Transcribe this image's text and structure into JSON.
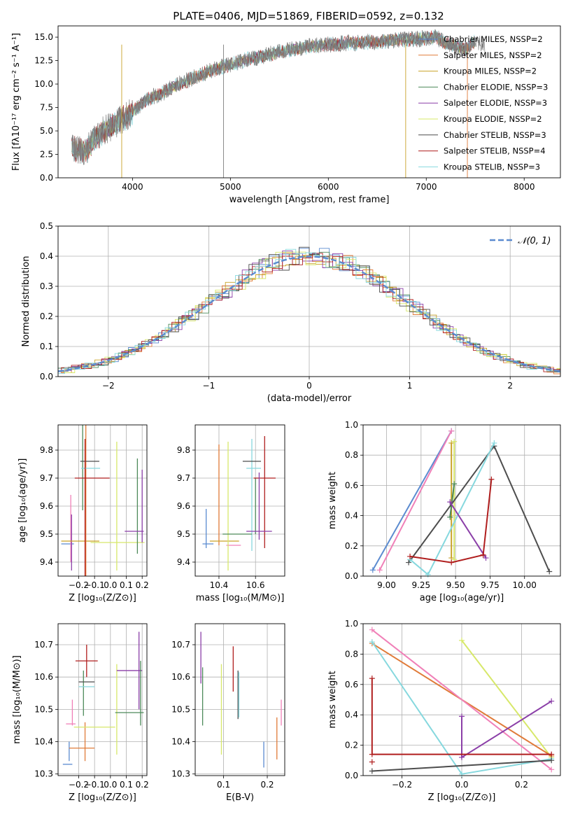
{
  "chart_data": [
    {
      "id": "spectrum",
      "type": "line",
      "title": "PLATE=0406, MJD=51869, FIBERID=0592, z=0.132",
      "xlabel": "wavelength [Angstrom, rest frame]",
      "ylabel": "Flux [fλ10⁻¹⁷ erg cm⁻² s⁻¹ A⁻¹]",
      "xlim": [
        3240,
        8370
      ],
      "ylim": [
        0,
        16.2
      ],
      "xticks": [
        "4000",
        "5000",
        "6000",
        "7000",
        "8000"
      ],
      "yticks": [
        "0.0",
        "2.5",
        "5.0",
        "7.5",
        "10.0",
        "12.5",
        "15.0"
      ],
      "grid": false,
      "legend_position": "top-right",
      "observed_flux": {
        "x": [
          3380,
          3450,
          3520,
          3600,
          3700,
          3800,
          3900,
          4000,
          4100,
          4200,
          4300,
          4400,
          4500,
          4600,
          4700,
          4800,
          4900,
          5000,
          5100,
          5200,
          5300,
          5400,
          5500,
          5600,
          5700,
          5800,
          5900,
          6000,
          6100,
          6200,
          6300,
          6400,
          6500,
          6600,
          6700,
          6800,
          6900,
          7000,
          7100,
          7200,
          7300,
          7400,
          7500,
          7600
        ],
        "y": [
          3.2,
          3.0,
          2.7,
          4.0,
          5.0,
          5.6,
          6.3,
          7.0,
          8.0,
          8.6,
          9.0,
          9.6,
          10.1,
          10.6,
          11.0,
          11.4,
          11.8,
          12.1,
          12.4,
          12.7,
          12.9,
          13.2,
          13.4,
          13.6,
          13.8,
          14.0,
          14.1,
          14.2,
          14.3,
          14.4,
          14.4,
          14.5,
          14.5,
          14.6,
          14.7,
          14.7,
          14.8,
          14.9,
          15.0,
          14.4,
          14.0,
          13.6,
          14.6,
          14.1
        ]
      },
      "series": [
        {
          "name": "Chabrier MILES, N_SSP=2",
          "color": "#5b8bd0"
        },
        {
          "name": "Salpeter MILES, N_SSP=2",
          "color": "#e07b39"
        },
        {
          "name": "Kroupa MILES, N_SSP=2",
          "color": "#c9a227"
        },
        {
          "name": "Chabrier ELODIE, N_SSP=3",
          "color": "#4d8a5a"
        },
        {
          "name": "Salpeter ELODIE, N_SSP=3",
          "color": "#8b3fa8"
        },
        {
          "name": "Kroupa ELODIE, N_SSP=2",
          "color": "#d7e86a"
        },
        {
          "name": "Chabrier STELIB, N_SSP=3",
          "color": "#4d4d4d"
        },
        {
          "name": "Salpeter STELIB, N_SSP=4",
          "color": "#b01e1e"
        },
        {
          "name": "Kroupa STELIB, N_SSP=3",
          "color": "#86d8de"
        }
      ]
    },
    {
      "id": "residuals",
      "type": "line",
      "xlabel": "(data-model)/error",
      "ylabel": "Normed distribution",
      "xlim": [
        -2.5,
        2.5
      ],
      "ylim": [
        0,
        0.5
      ],
      "xticks": [
        "−2",
        "−1",
        "0",
        "1",
        "2"
      ],
      "yticks": [
        "0.0",
        "0.1",
        "0.2",
        "0.3",
        "0.4",
        "0.5"
      ],
      "grid": true,
      "legend_position": "top-right",
      "gaussian_label": "𝒩(0, 1)",
      "gaussian_color": "#5b8bd0"
    },
    {
      "id": "age-vs-Z",
      "type": "scatter",
      "xlabel": "Z [log₁₀(Z/Z⊙)]",
      "ylabel": "age  [log₁₀(age/yr)]",
      "xlim": [
        -0.33,
        0.23
      ],
      "ylim": [
        9.35,
        9.89
      ],
      "xticks": [
        -0.2,
        -0.1,
        0.0,
        0.1,
        0.2
      ],
      "yticks": [
        9.4,
        9.5,
        9.6,
        9.7,
        9.8
      ],
      "grid": true,
      "points": [
        {
          "x": -0.27,
          "xerr": 0.04,
          "y": 9.465,
          "yerr": 0.0,
          "color": "#5b8bd0"
        },
        {
          "x": -0.25,
          "xerr": 0.0,
          "y": 9.52,
          "yerr": 0.12,
          "color": "#f080b8"
        },
        {
          "x": -0.245,
          "xerr": 0.0,
          "y": 9.47,
          "yerr": 0.1,
          "color": "#8b3fa8"
        },
        {
          "x": -0.19,
          "xerr": 0.12,
          "y": 9.475,
          "yerr": 0.0,
          "color": "#c9a227"
        },
        {
          "x": -0.155,
          "xerr": 0.0,
          "y": 9.65,
          "yerr": 0.35,
          "color": "#e07b39"
        },
        {
          "x": -0.175,
          "xerr": 0.0,
          "y": 9.745,
          "yerr": 0.16,
          "color": "#4d8a5a"
        },
        {
          "x": -0.13,
          "xerr": 0.06,
          "y": 9.76,
          "yerr": 0.0,
          "color": "#4d4d4d"
        },
        {
          "x": -0.125,
          "xerr": 0.06,
          "y": 9.735,
          "yerr": 0.0,
          "color": "#86d8de"
        },
        {
          "x": -0.115,
          "xerr": 0.11,
          "y": 9.7,
          "yerr": 0.0,
          "color": "#b01e1e"
        },
        {
          "x": -0.16,
          "xerr": 0.0,
          "y": 9.59,
          "yerr": 0.25,
          "color": "#b01e1e"
        },
        {
          "x": 0.045,
          "xerr": 0.17,
          "y": 9.47,
          "yerr": 0.0,
          "color": "#d7e86a"
        },
        {
          "x": 0.04,
          "xerr": 0.0,
          "y": 9.6,
          "yerr": 0.23,
          "color": "#d7e86a"
        },
        {
          "x": 0.2,
          "xerr": 0.0,
          "y": 9.6,
          "yerr": 0.13,
          "color": "#8b3fa8"
        },
        {
          "x": 0.17,
          "xerr": 0.0,
          "y": 9.6,
          "yerr": 0.17,
          "color": "#4d8a5a"
        },
        {
          "x": 0.15,
          "xerr": 0.06,
          "y": 9.51,
          "yerr": 0.0,
          "color": "#8b3fa8"
        }
      ]
    },
    {
      "id": "age-vs-mass",
      "type": "scatter",
      "xlabel": "mass [log₁₀(M/M⊙)]",
      "xlim": [
        10.27,
        10.76
      ],
      "ylim": [
        9.35,
        9.89
      ],
      "xticks": [
        10.4,
        10.6
      ],
      "yticks": [
        9.4,
        9.5,
        9.6,
        9.7,
        9.8
      ],
      "grid": true,
      "points": [
        {
          "x": 10.34,
          "xerr": 0.03,
          "y": 9.465,
          "yerr": 0.0,
          "color": "#5b8bd0"
        },
        {
          "x": 10.33,
          "xerr": 0.0,
          "y": 9.52,
          "yerr": 0.07,
          "color": "#5b8bd0"
        },
        {
          "x": 10.4,
          "xerr": 0.0,
          "y": 9.64,
          "yerr": 0.18,
          "color": "#e07b39"
        },
        {
          "x": 10.43,
          "xerr": 0.08,
          "y": 9.475,
          "yerr": 0.0,
          "color": "#c9a227"
        },
        {
          "x": 10.48,
          "xerr": 0.04,
          "y": 9.46,
          "yerr": 0.0,
          "color": "#f080b8"
        },
        {
          "x": 10.45,
          "xerr": 0.0,
          "y": 9.6,
          "yerr": 0.23,
          "color": "#d7e86a"
        },
        {
          "x": 10.58,
          "xerr": 0.0,
          "y": 9.64,
          "yerr": 0.2,
          "color": "#86d8de"
        },
        {
          "x": 10.58,
          "xerr": 0.05,
          "y": 9.76,
          "yerr": 0.0,
          "color": "#4d4d4d"
        },
        {
          "x": 10.59,
          "xerr": 0.04,
          "y": 9.735,
          "yerr": 0.0,
          "color": "#86d8de"
        },
        {
          "x": 10.6,
          "xerr": 0.0,
          "y": 9.6,
          "yerr": 0.1,
          "color": "#4d8a5a"
        },
        {
          "x": 10.65,
          "xerr": 0.06,
          "y": 9.7,
          "yerr": 0.0,
          "color": "#b01e1e"
        },
        {
          "x": 10.65,
          "xerr": 0.0,
          "y": 9.65,
          "yerr": 0.2,
          "color": "#b01e1e"
        },
        {
          "x": 10.5,
          "xerr": 0.08,
          "y": 9.5,
          "yerr": 0.0,
          "color": "#4d8a5a"
        },
        {
          "x": 10.62,
          "xerr": 0.07,
          "y": 9.51,
          "yerr": 0.0,
          "color": "#8b3fa8"
        },
        {
          "x": 10.62,
          "xerr": 0.0,
          "y": 9.6,
          "yerr": 0.12,
          "color": "#8b3fa8"
        }
      ]
    },
    {
      "id": "weight-vs-age",
      "type": "line",
      "xlabel": "age  [log₁₀(age/yr)]",
      "ylabel": "mass weight",
      "xlim": [
        8.83,
        10.26
      ],
      "ylim": [
        0.0,
        1.0
      ],
      "xticks": [
        9.0,
        9.25,
        9.5,
        9.75,
        10.0
      ],
      "yticks": [
        0.0,
        0.2,
        0.4,
        0.6,
        0.8,
        1.0
      ],
      "grid": true,
      "series": [
        {
          "color": "#5b8bd0",
          "x": [
            8.9,
            9.47
          ],
          "y": [
            0.04,
            0.96
          ]
        },
        {
          "color": "#f080b8",
          "x": [
            8.95,
            9.47
          ],
          "y": [
            0.04,
            0.96
          ]
        },
        {
          "color": "#c9a227",
          "x": [
            9.47,
            9.47
          ],
          "y": [
            0.12,
            0.88
          ]
        },
        {
          "color": "#d7e86a",
          "x": [
            9.49,
            9.49
          ],
          "y": [
            0.11,
            0.89
          ]
        },
        {
          "color": "#4d8a5a",
          "x": [
            9.46,
            9.49
          ],
          "y": [
            0.39,
            0.61
          ]
        },
        {
          "color": "#4d4d4d",
          "x": [
            9.16,
            9.78,
            10.18
          ],
          "y": [
            0.09,
            0.86,
            0.03
          ]
        },
        {
          "color": "#86d8de",
          "x": [
            9.17,
            9.3,
            9.78
          ],
          "y": [
            0.11,
            0.01,
            0.88
          ]
        },
        {
          "color": "#8b3fa8",
          "x": [
            9.46,
            9.72
          ],
          "y": [
            0.49,
            0.12
          ]
        },
        {
          "color": "#b01e1e",
          "x": [
            9.17,
            9.47,
            9.7,
            9.76
          ],
          "y": [
            0.13,
            0.09,
            0.14,
            0.64
          ]
        }
      ]
    },
    {
      "id": "mass-vs-Z",
      "type": "scatter",
      "xlabel": "Z [log₁₀(Z/Z⊙)]",
      "ylabel": "mass [log₁₀(M/M⊙)]",
      "xlim": [
        -0.33,
        0.23
      ],
      "ylim": [
        10.295,
        10.765
      ],
      "xticks": [
        -0.2,
        -0.1,
        0.0,
        0.1,
        0.2
      ],
      "yticks": [
        10.3,
        10.4,
        10.5,
        10.6,
        10.7
      ],
      "grid": true,
      "points": [
        {
          "x": -0.27,
          "xerr": 0.03,
          "y": 10.33,
          "yerr": 0.0,
          "color": "#5b8bd0"
        },
        {
          "x": -0.26,
          "xerr": 0.0,
          "y": 10.37,
          "yerr": 0.03,
          "color": "#5b8bd0"
        },
        {
          "x": -0.25,
          "xerr": 0.03,
          "y": 10.455,
          "yerr": 0.0,
          "color": "#f080b8"
        },
        {
          "x": -0.24,
          "xerr": 0.0,
          "y": 10.49,
          "yerr": 0.04,
          "color": "#f080b8"
        },
        {
          "x": -0.18,
          "xerr": 0.08,
          "y": 10.38,
          "yerr": 0.0,
          "color": "#e07b39"
        },
        {
          "x": -0.16,
          "xerr": 0.0,
          "y": 10.4,
          "yerr": 0.06,
          "color": "#e07b39"
        },
        {
          "x": -0.15,
          "xerr": 0.07,
          "y": 10.65,
          "yerr": 0.0,
          "color": "#b01e1e"
        },
        {
          "x": -0.15,
          "xerr": 0.0,
          "y": 10.65,
          "yerr": 0.05,
          "color": "#b01e1e"
        },
        {
          "x": -0.17,
          "xerr": 0.0,
          "y": 10.55,
          "yerr": 0.07,
          "color": "#4d8a5a"
        },
        {
          "x": -0.15,
          "xerr": 0.05,
          "y": 10.585,
          "yerr": 0.0,
          "color": "#4d4d4d"
        },
        {
          "x": -0.15,
          "xerr": 0.05,
          "y": 10.57,
          "yerr": 0.0,
          "color": "#86d8de"
        },
        {
          "x": -0.1,
          "xerr": 0.13,
          "y": 10.445,
          "yerr": 0.0,
          "color": "#d7e86a"
        },
        {
          "x": 0.04,
          "xerr": 0.0,
          "y": 10.5,
          "yerr": 0.14,
          "color": "#d7e86a"
        },
        {
          "x": 0.12,
          "xerr": 0.08,
          "y": 10.62,
          "yerr": 0.0,
          "color": "#8b3fa8"
        },
        {
          "x": 0.18,
          "xerr": 0.0,
          "y": 10.62,
          "yerr": 0.12,
          "color": "#8b3fa8"
        },
        {
          "x": 0.12,
          "xerr": 0.09,
          "y": 10.49,
          "yerr": 0.0,
          "color": "#4d8a5a"
        },
        {
          "x": 0.19,
          "xerr": 0.0,
          "y": 10.55,
          "yerr": 0.1,
          "color": "#4d8a5a"
        }
      ]
    },
    {
      "id": "mass-vs-EBV",
      "type": "scatter",
      "xlabel": "E(B-V)",
      "xlim": [
        0.035,
        0.24
      ],
      "ylim": [
        10.295,
        10.765
      ],
      "xticks": [
        0.1,
        0.2
      ],
      "yticks": [
        10.3,
        10.4,
        10.5,
        10.6,
        10.7
      ],
      "grid": true,
      "points": [
        {
          "x": 0.048,
          "xerr": 0.0,
          "y": 10.66,
          "yerr": 0.08,
          "color": "#8b3fa8"
        },
        {
          "x": 0.052,
          "xerr": 0.0,
          "y": 10.54,
          "yerr": 0.09,
          "color": "#4d8a5a"
        },
        {
          "x": 0.095,
          "xerr": 0.0,
          "y": 10.5,
          "yerr": 0.14,
          "color": "#d7e86a"
        },
        {
          "x": 0.122,
          "xerr": 0.0,
          "y": 10.625,
          "yerr": 0.07,
          "color": "#b01e1e"
        },
        {
          "x": 0.133,
          "xerr": 0.0,
          "y": 10.545,
          "yerr": 0.075,
          "color": "#4d4d4d"
        },
        {
          "x": 0.135,
          "xerr": 0.0,
          "y": 10.545,
          "yerr": 0.07,
          "color": "#86d8de"
        },
        {
          "x": 0.192,
          "xerr": 0.0,
          "y": 10.36,
          "yerr": 0.04,
          "color": "#5b8bd0"
        },
        {
          "x": 0.222,
          "xerr": 0.0,
          "y": 10.41,
          "yerr": 0.065,
          "color": "#e07b39"
        },
        {
          "x": 0.232,
          "xerr": 0.0,
          "y": 10.49,
          "yerr": 0.04,
          "color": "#f080b8"
        }
      ]
    },
    {
      "id": "weight-vs-Z",
      "type": "line",
      "xlabel": "Z [log₁₀(Z/Z⊙)]",
      "ylabel": "mass weight",
      "xlim": [
        -0.33,
        0.33
      ],
      "ylim": [
        0.0,
        1.0
      ],
      "xticks": [
        -0.2,
        0.0,
        0.2
      ],
      "yticks": [
        0.0,
        0.2,
        0.4,
        0.6,
        0.8,
        1.0
      ],
      "grid": true,
      "series": [
        {
          "color": "#d7e86a",
          "x": [
            0.0,
            0.3
          ],
          "y": [
            0.89,
            0.12
          ]
        },
        {
          "color": "#e07b39",
          "x": [
            -0.3,
            0.3
          ],
          "y": [
            0.87,
            0.13
          ]
        },
        {
          "color": "#f080b8",
          "x": [
            -0.3,
            0.3
          ],
          "y": [
            0.96,
            0.04
          ]
        },
        {
          "color": "#86d8de",
          "x": [
            -0.3,
            0.0,
            0.3
          ],
          "y": [
            0.88,
            0.01,
            0.11
          ]
        },
        {
          "color": "#4d4d4d",
          "x": [
            -0.3,
            0.3
          ],
          "y": [
            0.03,
            0.1
          ]
        },
        {
          "color": "#8b3fa8",
          "x": [
            0.0,
            0.0,
            0.3
          ],
          "y": [
            0.39,
            0.12,
            0.49
          ]
        },
        {
          "color": "#b01e1e",
          "x": [
            -0.3,
            -0.3,
            0.3
          ],
          "y": [
            0.64,
            0.14,
            0.14
          ]
        },
        {
          "color": "#b01e1e",
          "x": [
            -0.3
          ],
          "y": [
            0.09
          ]
        }
      ]
    }
  ]
}
